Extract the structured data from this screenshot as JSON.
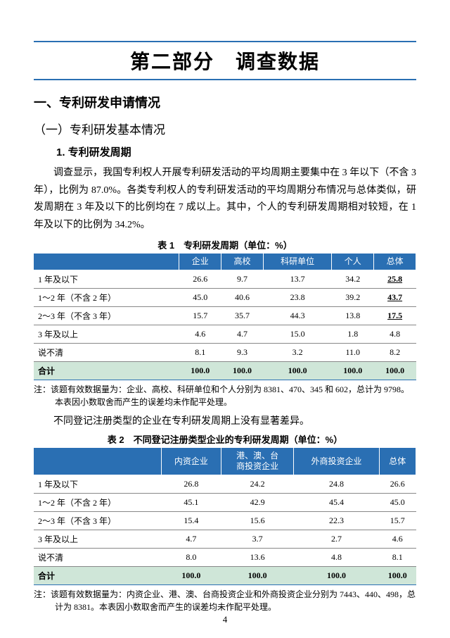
{
  "part_title": "第二部分　调查数据",
  "h_one": "一、专利研发申请情况",
  "h_two": "（一）专利研发基本情况",
  "h_three": "1. 专利研发周期",
  "para1": "调查显示，我国专利权人开展专利研发活动的平均周期主要集中在 3 年以下（不含 3 年），比例为 87.0%。各类专利权人的专利研发活动的平均周期分布情况与总体类似，研发周期在 3 年及以下的比例均在 7 成以上。其中，个人的专利研发周期相对较短，在 1 年及以下的比例为 34.2%。",
  "table1": {
    "caption": "表 1　专利研发周期（单位：%）",
    "headers": [
      "",
      "企业",
      "高校",
      "科研单位",
      "个人",
      "总体"
    ],
    "rows": [
      {
        "cells": [
          "1 年及以下",
          "26.6",
          "9.7",
          "13.7",
          "34.2",
          "25.8"
        ],
        "bold_last": true
      },
      {
        "cells": [
          "1～2 年（不含 2 年）",
          "45.0",
          "40.6",
          "23.8",
          "39.2",
          "43.7"
        ],
        "bold_last": true
      },
      {
        "cells": [
          "2～3 年（不含 3 年）",
          "15.7",
          "35.7",
          "44.3",
          "13.8",
          "17.5"
        ],
        "bold_last": true
      },
      {
        "cells": [
          "3 年及以上",
          "4.6",
          "4.7",
          "15.0",
          "1.8",
          "4.8"
        ],
        "bold_last": false
      },
      {
        "cells": [
          "说不清",
          "8.1",
          "9.3",
          "3.2",
          "11.0",
          "8.2"
        ],
        "bold_last": false
      }
    ],
    "total": [
      "合计",
      "100.0",
      "100.0",
      "100.0",
      "100.0",
      "100.0"
    ],
    "note": "注：该题有效数据量为：企业、高校、科研单位和个人分别为 8381、470、345 和 602，总计为 9798。本表因小数取舍而产生的误差均未作配平处理。"
  },
  "para2": "不同登记注册类型的企业在专利研发周期上没有显著差异。",
  "table2": {
    "caption": "表 2　不同登记注册类型企业的专利研发周期（单位：%）",
    "headers": [
      "",
      "内资企业",
      "港、澳、台\n商投资企业",
      "外商投资企业",
      "总体"
    ],
    "rows": [
      {
        "cells": [
          "1 年及以下",
          "26.8",
          "24.2",
          "24.8",
          "26.6"
        ]
      },
      {
        "cells": [
          "1～2 年（不含 2 年）",
          "45.1",
          "42.9",
          "45.4",
          "45.0"
        ]
      },
      {
        "cells": [
          "2～3 年（不含 3 年）",
          "15.4",
          "15.6",
          "22.3",
          "15.7"
        ]
      },
      {
        "cells": [
          "3 年及以上",
          "4.7",
          "3.7",
          "2.7",
          "4.6"
        ]
      },
      {
        "cells": [
          "说不清",
          "8.0",
          "13.6",
          "4.8",
          "8.1"
        ]
      }
    ],
    "total": [
      "合计",
      "100.0",
      "100.0",
      "100.0",
      "100.0"
    ],
    "note": "注：该题有效数据量为：内资企业、港、澳、台商投资企业和外商投资企业分别为 7443、440、498，总计为 8381。本表因小数取舍而产生的误差均未作配平处理。"
  },
  "page_number": "4",
  "colors": {
    "header_bg": "#2a6fb3",
    "total_bg": "#cfe6d8",
    "rule": "#2a6fb3"
  }
}
